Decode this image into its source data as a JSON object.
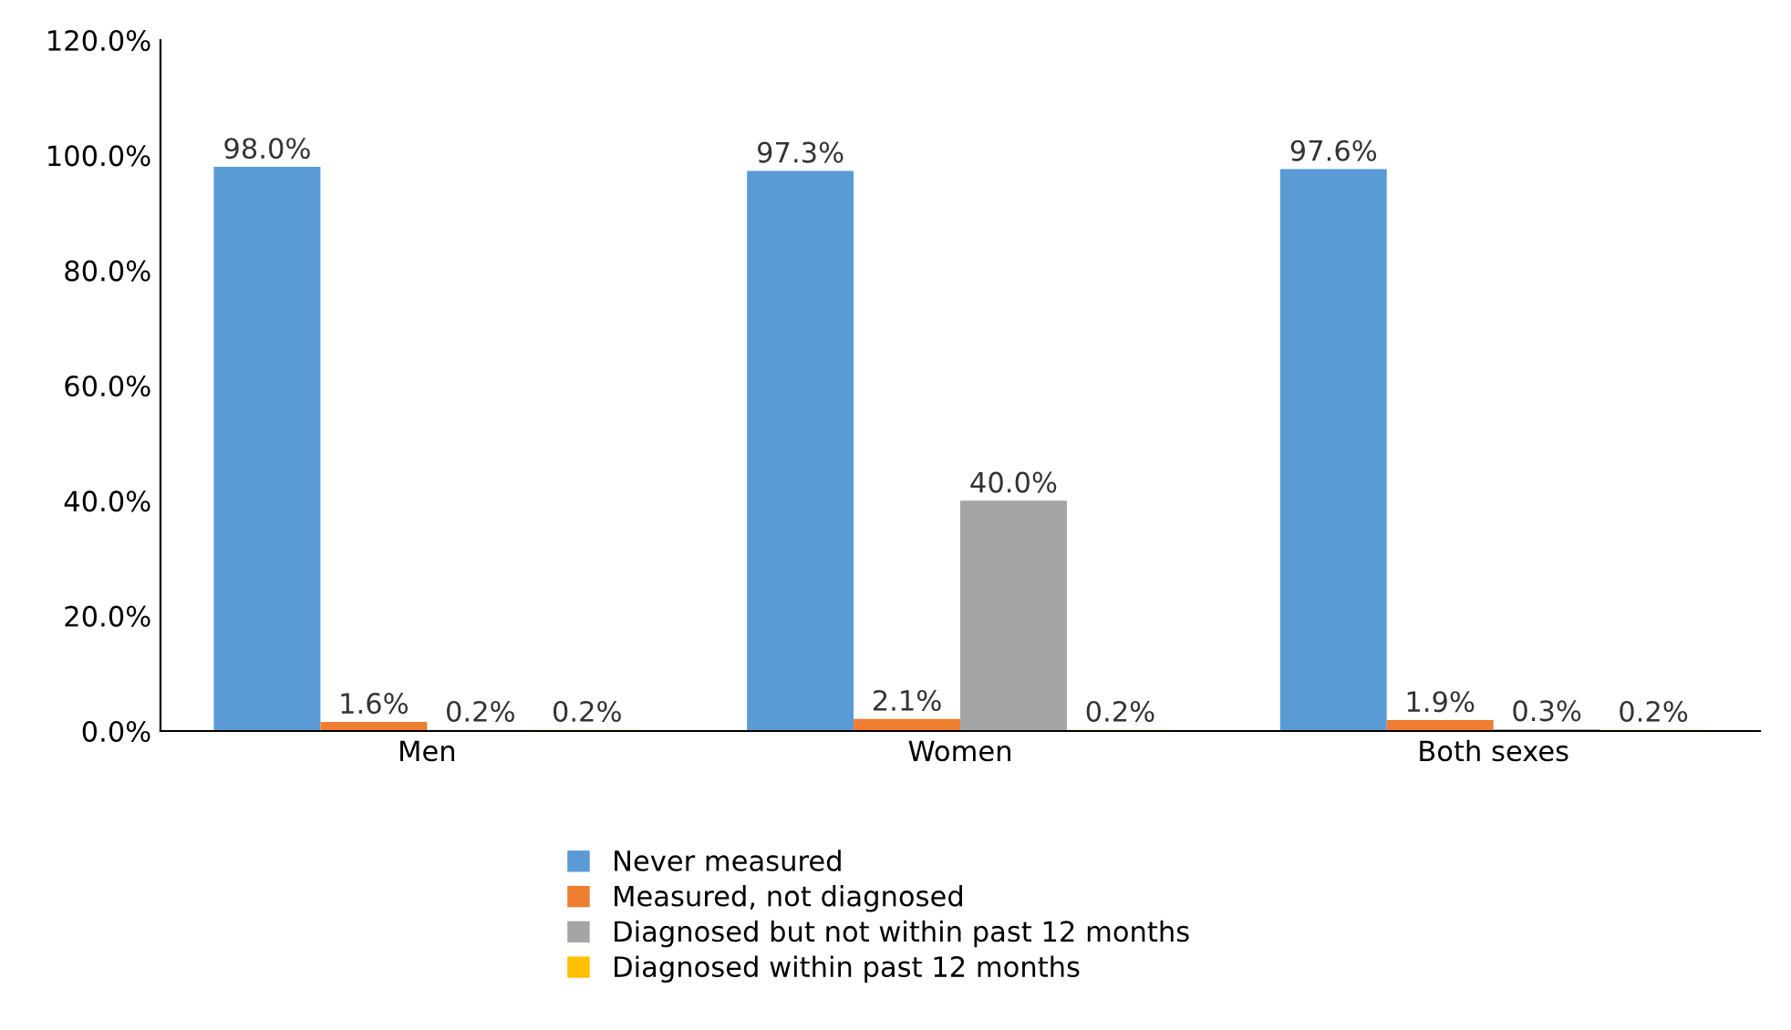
{
  "chart_data": {
    "type": "bar",
    "categories": [
      "Men",
      "Women",
      "Both sexes"
    ],
    "series": [
      {
        "name": "Never measured",
        "color": "#5b9bd5",
        "values": [
          98.0,
          97.3,
          97.6
        ],
        "value_labels": [
          "98.0%",
          "97.3%",
          "97.6%"
        ]
      },
      {
        "name": "Measured, not diagnosed",
        "color": "#ed7d31",
        "values": [
          1.6,
          2.1,
          1.9
        ],
        "value_labels": [
          "1.6%",
          "2.1%",
          "1.9%"
        ]
      },
      {
        "name": "Diagnosed but not within past 12 months",
        "color": "#a5a5a5",
        "values": [
          0.2,
          40.0,
          0.3
        ],
        "value_labels": [
          "0.2%",
          "40.0%",
          "0.3%"
        ]
      },
      {
        "name": "Diagnosed within past 12 months",
        "color": "#ffc000",
        "values": [
          0.2,
          0.2,
          0.2
        ],
        "value_labels": [
          "0.2%",
          "0.2%",
          "0.2%"
        ]
      }
    ],
    "ylim": [
      0,
      120
    ],
    "yticks": [
      {
        "value": 0,
        "label": "0.0%"
      },
      {
        "value": 20,
        "label": "20.0%"
      },
      {
        "value": 40,
        "label": "40.0%"
      },
      {
        "value": 60,
        "label": "60.0%"
      },
      {
        "value": 80,
        "label": "80.0%"
      },
      {
        "value": 100,
        "label": "100.0%"
      },
      {
        "value": 120,
        "label": "120.0%"
      }
    ],
    "grid": false,
    "legend": "bottom"
  }
}
